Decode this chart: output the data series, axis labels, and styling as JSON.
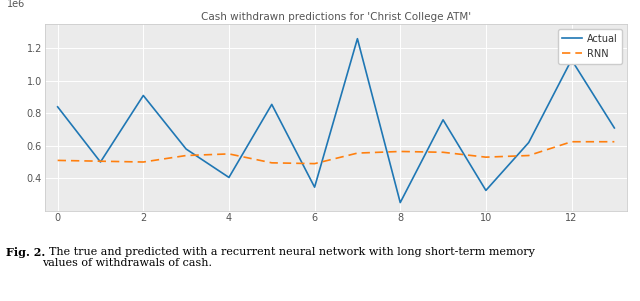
{
  "title": "Cash withdrawn predictions for 'Christ College ATM'",
  "actual_x": [
    0,
    1,
    2,
    3,
    4,
    5,
    6,
    7,
    8,
    9,
    10,
    11,
    12,
    13
  ],
  "actual_y": [
    840000,
    500000,
    910000,
    580000,
    405000,
    855000,
    345000,
    1260000,
    250000,
    760000,
    325000,
    620000,
    1130000,
    710000
  ],
  "rnn_x": [
    0,
    1,
    2,
    3,
    4,
    5,
    6,
    7,
    8,
    9,
    10,
    11,
    12,
    13
  ],
  "rnn_y": [
    510000,
    505000,
    500000,
    540000,
    550000,
    495000,
    490000,
    555000,
    565000,
    560000,
    530000,
    540000,
    625000,
    625000
  ],
  "actual_color": "#1f77b4",
  "rnn_color": "#ff7f0e",
  "actual_label": "Actual",
  "rnn_label": "RNN",
  "ylim_min": 200000,
  "ylim_max": 1350000,
  "xlim_min": -0.3,
  "xlim_max": 13.3,
  "yticks": [
    400000,
    600000,
    800000,
    1000000,
    1200000
  ],
  "xticks": [
    0,
    2,
    4,
    6,
    8,
    10,
    12
  ],
  "title_fontsize": 7.5,
  "legend_fontsize": 7,
  "tick_fontsize": 7,
  "caption_bold": "Fig. 2.",
  "caption_normal": "  The true and predicted with a recurrent neural network with long short-term memory\nvalues of withdrawals of cash.",
  "background_color": "#ebebeb"
}
